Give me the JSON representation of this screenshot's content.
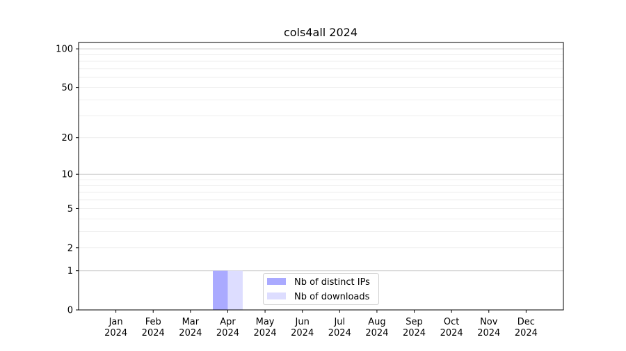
{
  "chart_data": {
    "type": "bar",
    "title": "cols4all 2024",
    "xlabel": "",
    "ylabel": "",
    "y_scale": "log(y+1)",
    "ylim": [
      0,
      112
    ],
    "xlim": [
      -1,
      12
    ],
    "grid": true,
    "legend_placement": "lower-center",
    "categories": [
      "Jan\n2024",
      "Feb\n2024",
      "Mar\n2024",
      "Apr\n2024",
      "May\n2024",
      "Jun\n2024",
      "Jul\n2024",
      "Aug\n2024",
      "Sep\n2024",
      "Oct\n2024",
      "Nov\n2024",
      "Dec\n2024"
    ],
    "y_ticks": [
      0,
      1,
      2,
      5,
      10,
      20,
      50,
      100
    ],
    "series": [
      {
        "name": "Nb of distinct IPs",
        "color": "#aaaaff",
        "values": [
          0,
          0,
          0,
          1,
          0,
          0,
          0,
          0,
          0,
          0,
          0,
          0
        ]
      },
      {
        "name": "Nb of downloads",
        "color": "#ddddff",
        "values": [
          0,
          0,
          0,
          1,
          0,
          0,
          0,
          0,
          0,
          0,
          0,
          0
        ]
      }
    ]
  }
}
